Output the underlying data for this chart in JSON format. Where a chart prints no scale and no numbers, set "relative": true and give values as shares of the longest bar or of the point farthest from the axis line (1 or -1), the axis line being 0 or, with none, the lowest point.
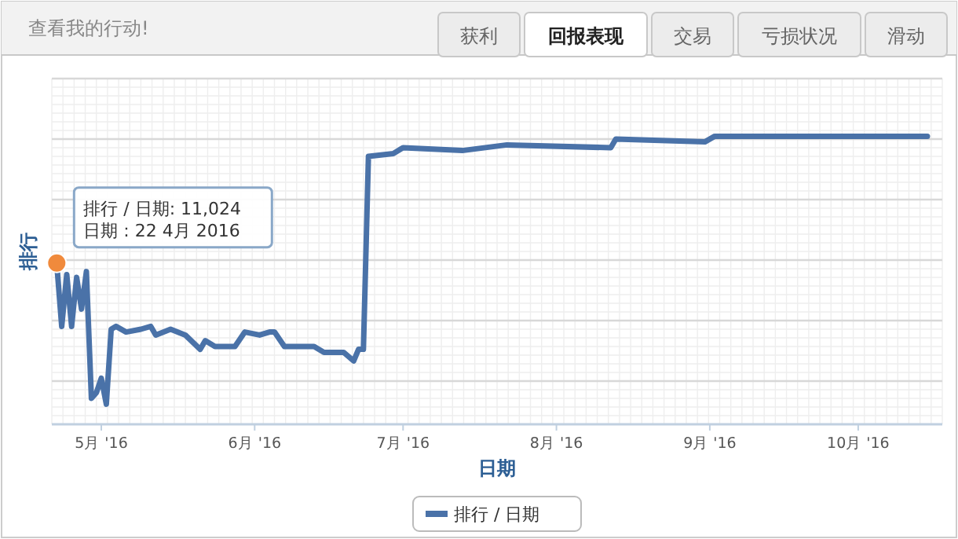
{
  "chart_data": {
    "type": "line",
    "title": "查看我的行动!",
    "xlabel": "日期",
    "ylabel": "排行",
    "relative": true,
    "grid": true,
    "legend": "bottom",
    "marker": "none",
    "line_style": "solid",
    "annotations": [
      "获利",
      "回报表现",
      "交易",
      "亏损状况",
      "滑动",
      {
        "text": "排行 / 日期: 11,024\n日期 : 22 4月 2016",
        "x": "2016-04-22",
        "y": 0.56
      }
    ],
    "xlim": [
      "2016-04-21",
      "2016-10-18"
    ],
    "xticks": [
      {
        "value": "2016-05-01",
        "label": "5月 '16"
      },
      {
        "value": "2016-06-01",
        "label": "6月 '16"
      },
      {
        "value": "2016-07-01",
        "label": "7月 '16"
      },
      {
        "value": "2016-08-01",
        "label": "8月 '16"
      },
      {
        "value": "2016-09-01",
        "label": "9月 '16"
      },
      {
        "value": "2016-10-01",
        "label": "10月 '16"
      }
    ],
    "series": [
      {
        "name": "排行 / 日期",
        "color": "#4a72a8",
        "x": [
          "2016-04-22",
          "2016-04-23",
          "2016-04-24",
          "2016-04-25",
          "2016-04-26",
          "2016-04-27",
          "2016-04-28",
          "2016-04-29",
          "2016-04-30",
          "2016-05-01",
          "2016-05-02",
          "2016-05-03",
          "2016-05-04",
          "2016-05-06",
          "2016-05-09",
          "2016-05-11",
          "2016-05-12",
          "2016-05-15",
          "2016-05-18",
          "2016-05-21",
          "2016-05-22",
          "2016-05-24",
          "2016-05-28",
          "2016-05-30",
          "2016-06-02",
          "2016-06-04",
          "2016-06-05",
          "2016-06-07",
          "2016-06-13",
          "2016-06-15",
          "2016-06-19",
          "2016-06-21",
          "2016-06-22",
          "2016-06-23",
          "2016-06-24",
          "2016-06-29",
          "2016-07-01",
          "2016-07-13",
          "2016-07-22",
          "2016-08-12",
          "2016-08-13",
          "2016-08-31",
          "2016-09-02",
          "2016-10-15"
        ],
        "values": [
          0.56,
          0.34,
          0.52,
          0.34,
          0.51,
          0.4,
          0.53,
          0.09,
          0.11,
          0.16,
          0.07,
          0.33,
          0.34,
          0.32,
          0.33,
          0.34,
          0.31,
          0.33,
          0.31,
          0.26,
          0.29,
          0.27,
          0.27,
          0.32,
          0.31,
          0.32,
          0.32,
          0.27,
          0.27,
          0.25,
          0.25,
          0.22,
          0.26,
          0.26,
          0.93,
          0.94,
          0.96,
          0.95,
          0.97,
          0.96,
          0.99,
          0.98,
          1.0,
          1.0
        ]
      }
    ]
  }
}
